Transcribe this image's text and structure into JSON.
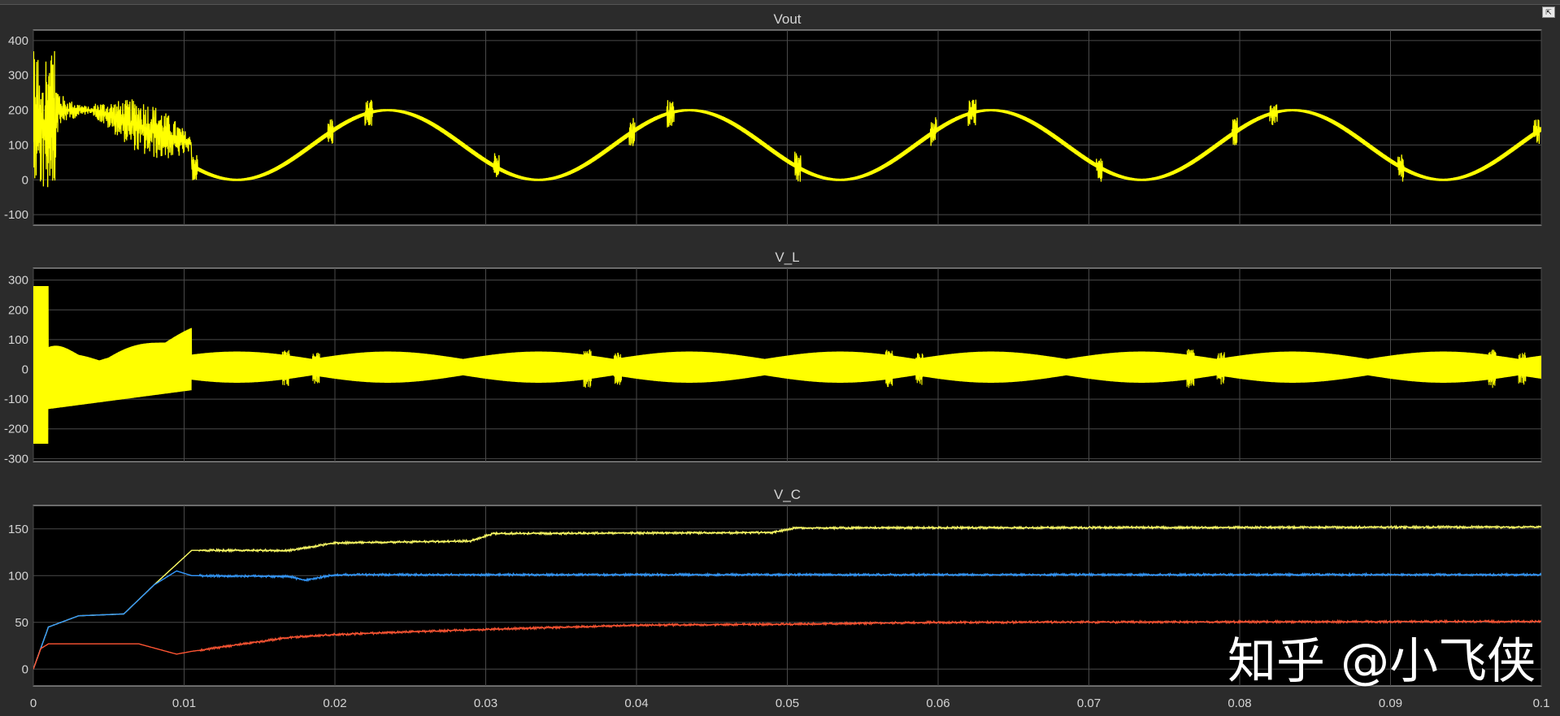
{
  "watermark": "知乎 @小飞侠",
  "chart_data": [
    {
      "type": "line",
      "title": "Vout",
      "xlim": [
        0,
        0.1
      ],
      "ylim": [
        -130,
        430
      ],
      "yticks": [
        -100,
        0,
        100,
        200,
        300,
        400
      ],
      "xticks": [
        0,
        0.01,
        0.02,
        0.03,
        0.04,
        0.05,
        0.06,
        0.07,
        0.08,
        0.09,
        0.1
      ],
      "grid": true,
      "series": [
        {
          "color": "#ffff00",
          "description_points": [
            {
              "x": 0.0,
              "y": 200
            },
            {
              "x": 0.004,
              "y": 200
            },
            {
              "x": 0.01,
              "y": 100
            },
            {
              "x": 0.0135,
              "y": 0
            },
            {
              "x": 0.0235,
              "y": 200
            },
            {
              "x": 0.0335,
              "y": 0
            },
            {
              "x": 0.0435,
              "y": 200
            },
            {
              "x": 0.0535,
              "y": 0
            },
            {
              "x": 0.0635,
              "y": 200
            },
            {
              "x": 0.0735,
              "y": 0
            },
            {
              "x": 0.0835,
              "y": 200
            },
            {
              "x": 0.0935,
              "y": 0
            },
            {
              "x": 0.1,
              "y": 140
            }
          ]
        }
      ]
    },
    {
      "type": "line",
      "title": "V_L",
      "xlim": [
        0,
        0.1
      ],
      "ylim": [
        -310,
        340
      ],
      "yticks": [
        -300,
        -200,
        -100,
        0,
        100,
        200,
        300
      ],
      "xticks": [
        0,
        0.01,
        0.02,
        0.03,
        0.04,
        0.05,
        0.06,
        0.07,
        0.08,
        0.09,
        0.1
      ],
      "grid": true,
      "series": [
        {
          "color": "#ffff00",
          "envelope_upper": 60,
          "envelope_lower": -40,
          "initial_peak": 280,
          "initial_trough": -250
        }
      ]
    },
    {
      "type": "line",
      "title": "V_C",
      "xlim": [
        0,
        0.1
      ],
      "ylim": [
        -18,
        175
      ],
      "yticks": [
        0,
        50,
        100,
        150
      ],
      "xticks": [
        0,
        0.01,
        0.02,
        0.03,
        0.04,
        0.05,
        0.06,
        0.07,
        0.08,
        0.09,
        0.1
      ],
      "xticklabels": [
        "0",
        "0.01",
        "0.02",
        "0.03",
        "0.04",
        "0.05",
        "0.06",
        "0.07",
        "0.08",
        "0.09",
        "0.1"
      ],
      "grid": true,
      "series": [
        {
          "color": "#ffff66",
          "x": [
            0,
            0.001,
            0.003,
            0.006,
            0.008,
            0.0105,
            0.017,
            0.02,
            0.029,
            0.0305,
            0.049,
            0.0505,
            0.1
          ],
          "y": [
            0,
            45,
            57,
            59,
            90,
            127,
            127,
            135,
            137,
            145,
            146,
            151,
            152
          ]
        },
        {
          "color": "#3399ff",
          "x": [
            0,
            0.001,
            0.003,
            0.006,
            0.008,
            0.0095,
            0.0105,
            0.017,
            0.018,
            0.02,
            0.1
          ],
          "y": [
            0,
            45,
            57,
            59,
            90,
            105,
            100,
            99,
            95,
            101,
            101
          ]
        },
        {
          "color": "#ff5533",
          "x": [
            0,
            0.0005,
            0.001,
            0.007,
            0.0095,
            0.0105,
            0.017,
            0.02,
            0.029,
            0.04,
            0.05,
            0.06,
            0.1
          ],
          "y": [
            0,
            22,
            27,
            27,
            16,
            19,
            34,
            37,
            42,
            47,
            48,
            50,
            51
          ]
        }
      ]
    }
  ]
}
